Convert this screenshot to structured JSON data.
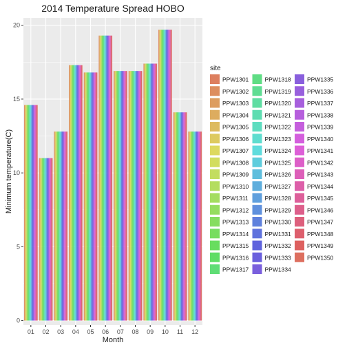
{
  "chart_data": {
    "type": "bar",
    "title": "2014 Temperature Spread HOBO",
    "xlabel": "Month",
    "ylabel": "Minimum temperature(C)",
    "ylim": [
      -0.3,
      20.5
    ],
    "yticks": [
      0,
      5,
      10,
      15,
      20
    ],
    "grid": true,
    "legend_position": "right",
    "legend_title": "site",
    "categories": [
      "01",
      "02",
      "03",
      "04",
      "05",
      "06",
      "07",
      "08",
      "09",
      "10",
      "11",
      "12"
    ],
    "values": [
      14.6,
      11.0,
      12.8,
      17.3,
      16.8,
      19.3,
      16.9,
      16.9,
      17.4,
      19.7,
      14.1,
      12.8
    ],
    "series_names": [
      "PPW1301",
      "PPW1302",
      "PPW1303",
      "PPW1304",
      "PPW1305",
      "PPW1306",
      "PPW1307",
      "PPW1308",
      "PPW1309",
      "PPW1310",
      "PPW1311",
      "PPW1312",
      "PPW1313",
      "PPW1314",
      "PPW1315",
      "PPW1316",
      "PPW1317",
      "PPW1318",
      "PPW1319",
      "PPW1320",
      "PPW1321",
      "PPW1322",
      "PPW1323",
      "PPW1324",
      "PPW1325",
      "PPW1326",
      "PPW1327",
      "PPW1328",
      "PPW1329",
      "PPW1330",
      "PPW1331",
      "PPW1332",
      "PPW1333",
      "PPW1334",
      "PPW1335",
      "PPW1336",
      "PPW1337",
      "PPW1338",
      "PPW1339",
      "PPW1340",
      "PPW1341",
      "PPW1342",
      "PPW1343",
      "PPW1344",
      "PPW1345",
      "PPW1346",
      "PPW1347",
      "PPW1348",
      "PPW1349",
      "PPW1350"
    ],
    "colors": {
      "panel_background": "#ebebeb",
      "grid": "#ffffff"
    }
  }
}
